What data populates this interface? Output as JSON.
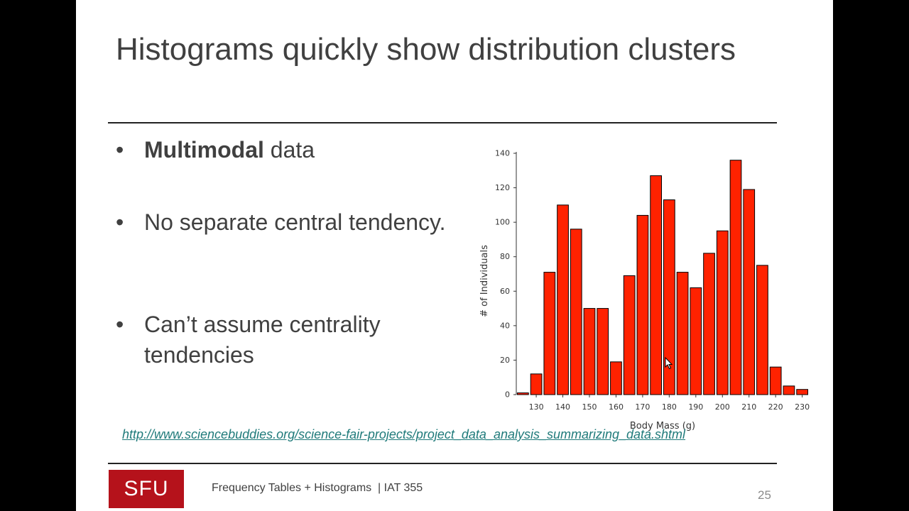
{
  "slide": {
    "title": "Histograms quickly show distribution clusters",
    "bullets": [
      {
        "bold": "Multimodal",
        "text": " data"
      },
      {
        "bold": "",
        "text": "No separate central tendency."
      },
      {
        "bold": "",
        "text": "Can’t assume centrality tendencies"
      }
    ],
    "bullet_glyph": "•",
    "link": "http://www.sciencebuddies.org/science-fair-projects/project_data_analysis_summarizing_data.shtml",
    "logo_text": "SFU",
    "footer": "Frequency Tables + Histograms  | IAT 355",
    "page_number": "25"
  },
  "chart_data": {
    "type": "bar",
    "xlabel": "Body Mass (g)",
    "ylabel": "# of Individuals",
    "ylim": [
      0,
      140
    ],
    "y_ticks": [
      "0",
      "20",
      "40",
      "60",
      "80",
      "100",
      "120",
      "140"
    ],
    "x_tick_labels": [
      "130",
      "140",
      "150",
      "160",
      "170",
      "180",
      "190",
      "200",
      "210",
      "220",
      "230"
    ],
    "categories": [
      "125",
      "130",
      "135",
      "140",
      "145",
      "150",
      "155",
      "160",
      "165",
      "170",
      "175",
      "180",
      "185",
      "190",
      "195",
      "200",
      "205",
      "210",
      "215",
      "220",
      "225",
      "230"
    ],
    "values": [
      1,
      12,
      71,
      110,
      96,
      50,
      50,
      19,
      69,
      104,
      127,
      113,
      71,
      62,
      82,
      95,
      136,
      119,
      75,
      16,
      5,
      3
    ],
    "bar_color": "#ff2200",
    "grid": false,
    "legend": "none"
  }
}
